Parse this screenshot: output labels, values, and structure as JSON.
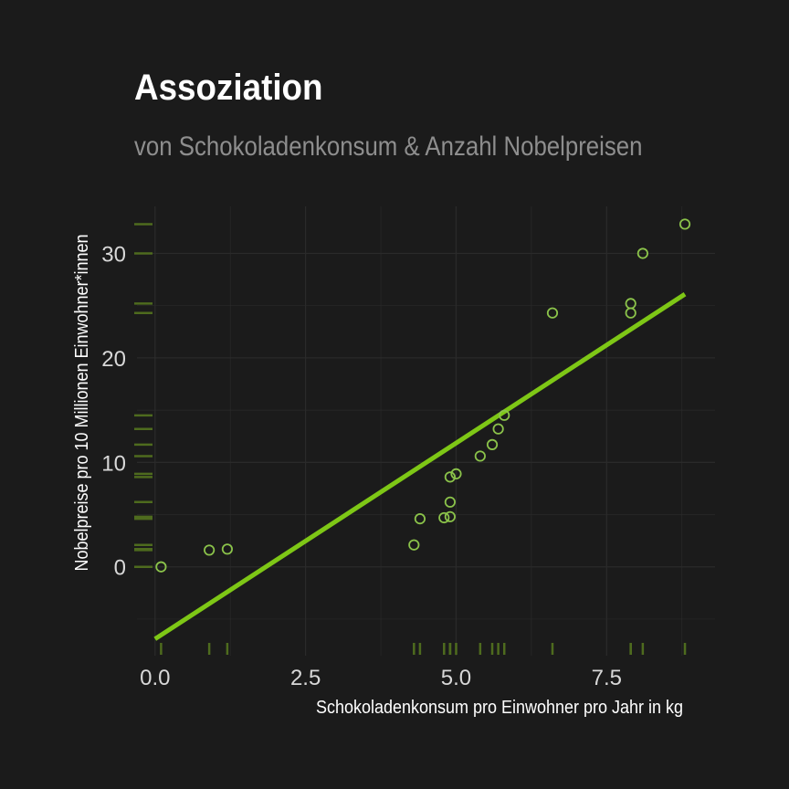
{
  "chart_data": {
    "type": "scatter",
    "title": "Assoziation",
    "subtitle": "von Schokoladenkonsum & Anzahl Nobelpreisen",
    "xlabel": "Schokoladenkonsum pro Einwohner pro Jahr in kg",
    "ylabel": "Nobelpreise pro 10 Millionen Einwohner*innen",
    "xlim": [
      -0.3,
      9.3
    ],
    "ylim": [
      -8.5,
      34.5
    ],
    "x_ticks": [
      0.0,
      2.5,
      5.0,
      7.5
    ],
    "x_tick_labels": [
      "0.0",
      "2.5",
      "5.0",
      "7.5"
    ],
    "y_ticks": [
      0,
      10,
      20,
      30
    ],
    "y_tick_labels": [
      "0",
      "10",
      "20",
      "30"
    ],
    "grid": true,
    "rug": true,
    "points": [
      {
        "x": 0.1,
        "y": 0.0
      },
      {
        "x": 0.9,
        "y": 1.6
      },
      {
        "x": 1.2,
        "y": 1.7
      },
      {
        "x": 4.3,
        "y": 2.1
      },
      {
        "x": 4.4,
        "y": 4.6
      },
      {
        "x": 4.8,
        "y": 4.7
      },
      {
        "x": 4.9,
        "y": 4.8
      },
      {
        "x": 4.9,
        "y": 6.2
      },
      {
        "x": 4.9,
        "y": 8.6
      },
      {
        "x": 5.0,
        "y": 8.9
      },
      {
        "x": 5.4,
        "y": 10.6
      },
      {
        "x": 5.6,
        "y": 11.7
      },
      {
        "x": 5.7,
        "y": 13.2
      },
      {
        "x": 5.8,
        "y": 14.5
      },
      {
        "x": 6.6,
        "y": 24.3
      },
      {
        "x": 7.9,
        "y": 24.3
      },
      {
        "x": 7.9,
        "y": 25.2
      },
      {
        "x": 8.1,
        "y": 30.0
      },
      {
        "x": 8.8,
        "y": 32.8
      }
    ],
    "trend_line": {
      "x": [
        0.0,
        8.8
      ],
      "y": [
        -6.9,
        26.1
      ]
    },
    "colors": {
      "point": "#8bc34a",
      "trend": "#7ec716",
      "rug": "#4e6b1e",
      "grid": "#2a2a2a",
      "background": "#1b1b1b"
    }
  }
}
